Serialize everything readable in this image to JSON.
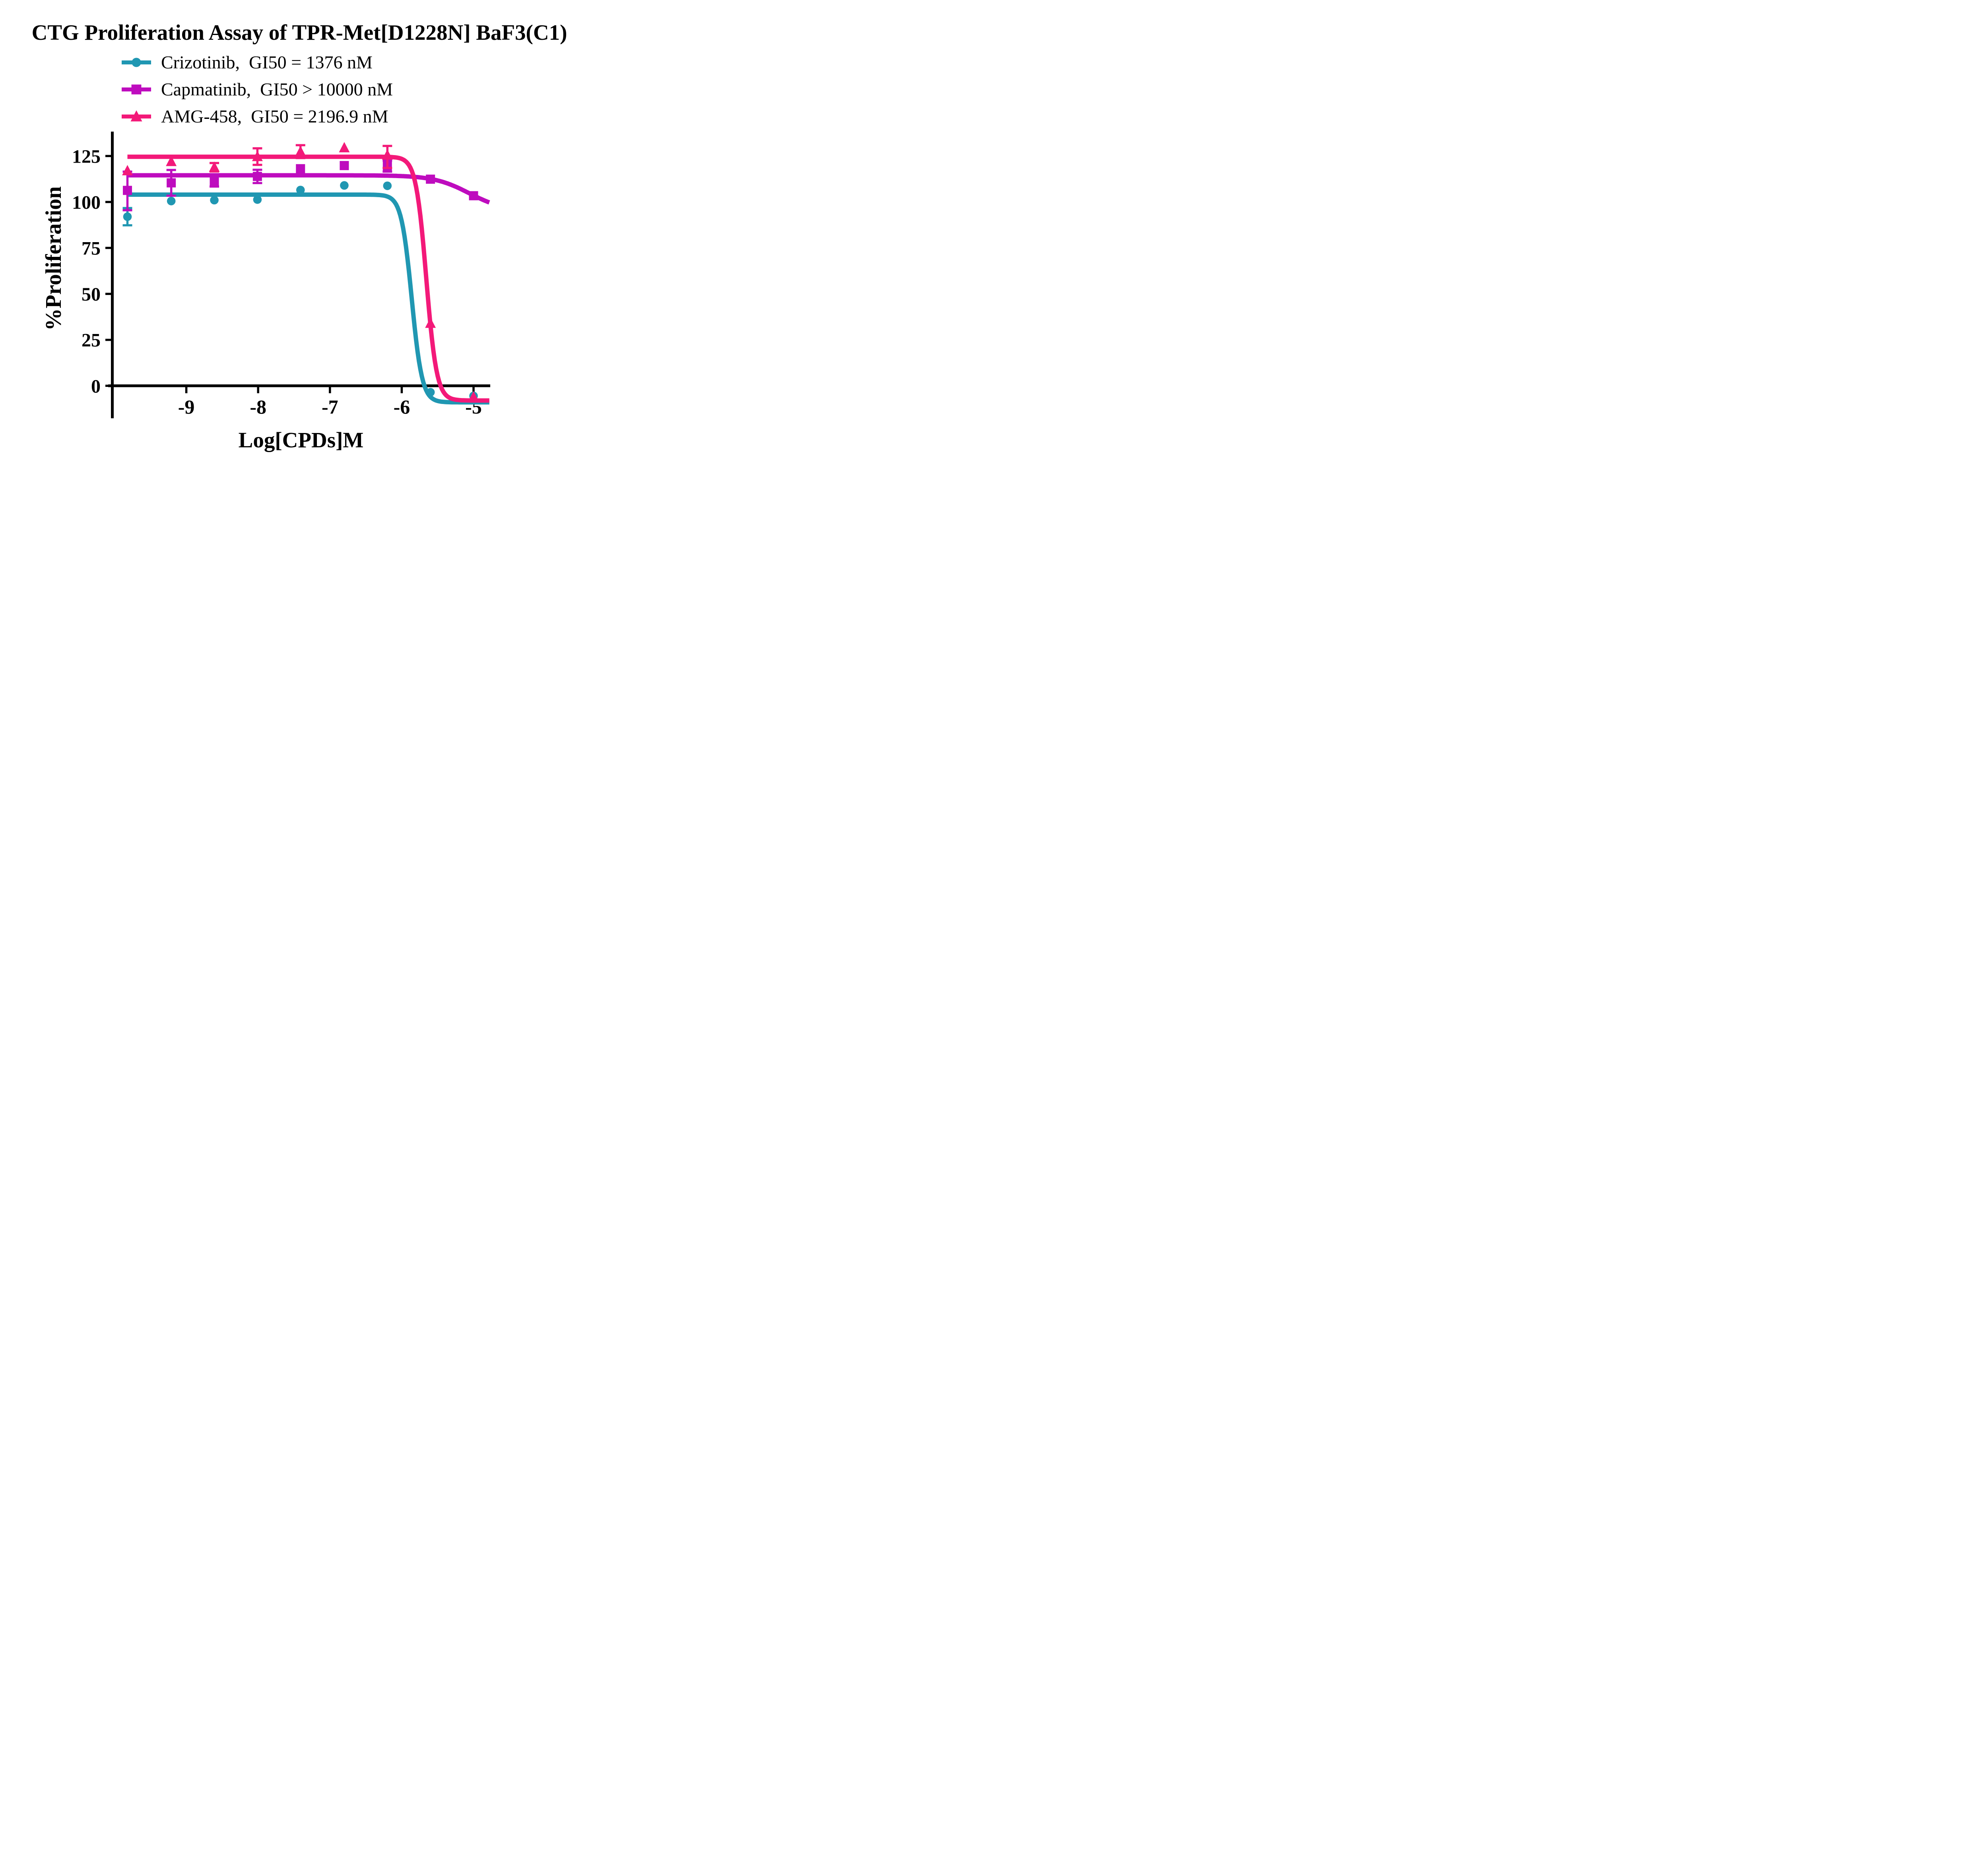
{
  "title": "CTG Proliferation Assay of TPR-Met[D1228N] BaF3(C1)",
  "legend": {
    "items": [
      {
        "label": "Crizotinib,  GI50 = 1376 nM"
      },
      {
        "label": "Capmatinib,  GI50 > 10000 nM"
      },
      {
        "label": "AMG-458,  GI50 = 2196.9 nM"
      }
    ]
  },
  "colors": {
    "crizotinib": "#2097B2",
    "capmatinib": "#BE0CBE",
    "amg458": "#F31979",
    "axis": "#000000"
  },
  "chart_data": {
    "type": "line",
    "title": "CTG Proliferation Assay of TPR-Met[D1228N] BaF3(C1)",
    "xlabel": "Log[CPDs]M",
    "ylabel": "%Proliferation",
    "x_ticks": [
      -9,
      -8,
      -7,
      -6,
      -5
    ],
    "y_ticks": [
      0,
      25,
      50,
      75,
      100,
      125
    ],
    "xlim": [
      -10.0,
      -4.75
    ],
    "ylim": [
      -18,
      138
    ],
    "grid": false,
    "legend_position": "top-left",
    "x": [
      -9.82,
      -9.21,
      -8.61,
      -8.01,
      -7.41,
      -6.8,
      -6.2,
      -5.6,
      -5.0
    ],
    "series": [
      {
        "name": "Crizotinib",
        "gi50_label": "GI50 = 1376 nM",
        "color": "#2097B2",
        "marker": "circle",
        "values": [
          92,
          100.5,
          101,
          101.3,
          106.5,
          109,
          108.8,
          -3.5,
          -5.5
        ],
        "err_plus": [
          4.7,
          0,
          0,
          0,
          0,
          0,
          0,
          0,
          0
        ],
        "err_minus": [
          4.7,
          0,
          0,
          0,
          0,
          0,
          0,
          0,
          0
        ],
        "fit": {
          "top": 104,
          "bottom": -9,
          "log_gi50": -5.861,
          "hill": 6
        },
        "curve_range": [
          -9.82,
          -4.78
        ]
      },
      {
        "name": "Capmatinib",
        "gi50_label": "GI50 > 10000 nM",
        "color": "#BE0CBE",
        "marker": "square",
        "values": [
          106.3,
          110.4,
          111.4,
          113.9,
          118.1,
          119.8,
          119.5,
          112.4,
          103.4
        ],
        "err_plus": [
          10.2,
          7,
          3,
          3.6,
          0,
          0,
          3,
          0,
          0
        ],
        "err_minus": [
          10.8,
          7,
          3,
          3.6,
          0,
          0,
          3,
          0,
          0
        ],
        "fit": {
          "top": 114.5,
          "bottom": 95,
          "log_gi50": -5.06,
          "hill": 1.76
        },
        "curve_range": [
          -9.82,
          -4.78
        ]
      },
      {
        "name": "AMG-458",
        "gi50_label": "GI50 = 2196.9 nM",
        "color": "#F31979",
        "marker": "triangle",
        "values": [
          117,
          122,
          118.9,
          124.7,
          127.4,
          129.5,
          125.5,
          34,
          -6
        ],
        "err_plus": [
          0,
          0,
          2.3,
          4.5,
          3.5,
          0,
          5,
          0,
          0
        ],
        "err_minus": [
          0,
          0,
          2.3,
          4.5,
          3.5,
          0,
          7,
          0,
          0
        ],
        "fit": {
          "top": 124.6,
          "bottom": -8,
          "log_gi50": -5.658,
          "hill": 6
        },
        "curve_range": [
          -9.82,
          -4.78
        ]
      }
    ]
  }
}
